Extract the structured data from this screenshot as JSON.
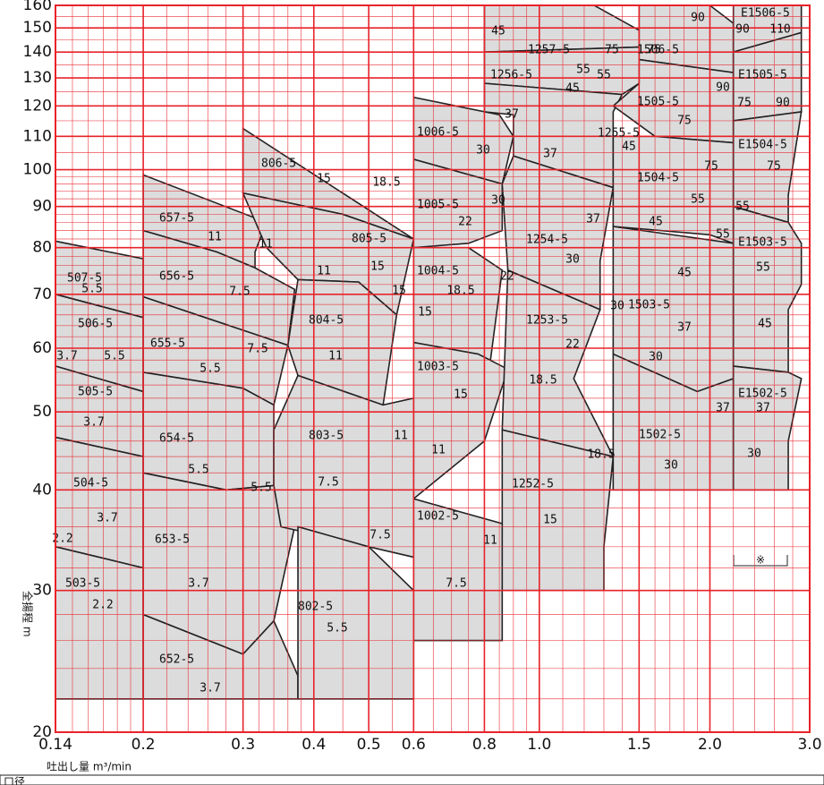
{
  "chart_data": {
    "type": "selection",
    "x_label": "吐出し量 m³/min",
    "y_label": "全揚程 m",
    "note": "※",
    "footer": "口径",
    "log_x": true,
    "log_y": true,
    "grid": true,
    "grid_color": "#e8232a",
    "fill_color": "#dcdcdc",
    "xlim": [
      0.14,
      3.0
    ],
    "ylim": [
      20,
      160
    ],
    "xticks": [
      0.14,
      0.2,
      0.3,
      0.4,
      0.5,
      0.6,
      0.8,
      {
        "value": 1,
        "label": "1.0"
      },
      1.5,
      {
        "value": 2,
        "label": "2.0"
      },
      {
        "value": 3,
        "label": "3.0"
      }
    ],
    "yticks": [
      20,
      30,
      40,
      50,
      60,
      70,
      80,
      90,
      100,
      110,
      120,
      130,
      140,
      150,
      160
    ],
    "minor_xticks": [
      0.15,
      0.16,
      0.17,
      0.18,
      0.19,
      0.22,
      0.24,
      0.26,
      0.28,
      0.32,
      0.34,
      0.36,
      0.38,
      0.45,
      0.55,
      0.65,
      0.7,
      0.75,
      0.85,
      0.9,
      0.95,
      1.1,
      1.2,
      1.3,
      1.4,
      1.6,
      1.7,
      1.8,
      1.9,
      2.2,
      2.4,
      2.6,
      2.8
    ],
    "minor_yticks": [
      22,
      24,
      26,
      28,
      32,
      34,
      36,
      38,
      42,
      44,
      46,
      48,
      52,
      54,
      56,
      58,
      62,
      64,
      66,
      68,
      72,
      74,
      76,
      78,
      82,
      84,
      86,
      88,
      92,
      94,
      96,
      98,
      105,
      115,
      125,
      135,
      145,
      155
    ],
    "regions": [
      {
        "name": "507-5",
        "kw": [
          "5.5"
        ],
        "x": [
          0.14,
          0.14,
          0.2,
          0.2
        ],
        "y": [
          70,
          81.5,
          77.5,
          65.5
        ]
      },
      {
        "name": "506-5",
        "kw": [
          "3.7",
          "5.5"
        ],
        "x": [
          0.14,
          0.14,
          0.2,
          0.2
        ],
        "y": [
          57,
          70,
          65.5,
          53
        ]
      },
      {
        "name": "505-5",
        "kw": [
          "3.7"
        ],
        "x": [
          0.14,
          0.14,
          0.2,
          0.2
        ],
        "y": [
          46.5,
          57,
          53,
          44
        ]
      },
      {
        "name": "504-5",
        "kw": [
          "3.7",
          "2.2"
        ],
        "x": [
          0.14,
          0.14,
          0.2,
          0.2
        ],
        "y": [
          34,
          46.5,
          44,
          32
        ]
      },
      {
        "name": "503-5",
        "kw": [
          "2.2"
        ],
        "x": [
          0.14,
          0.14,
          0.2,
          0.2
        ],
        "y": [
          22,
          34,
          32,
          22
        ]
      },
      {
        "name": "657-5",
        "kw": [
          "11",
          "11"
        ],
        "x": [
          0.2,
          0.2,
          0.33,
          0.315,
          0.315,
          0.27
        ],
        "y": [
          84,
          98.5,
          86,
          79,
          75.5,
          79
        ]
      },
      {
        "name": "656-5",
        "kw": [
          "7.5"
        ],
        "x": [
          0.2,
          0.2,
          0.27,
          0.315,
          0.37,
          0.36
        ],
        "y": [
          69.5,
          84,
          79,
          75.5,
          71,
          60.5
        ]
      },
      {
        "name": "655-5",
        "kw": [
          "5.5",
          "7.5"
        ],
        "x": [
          0.2,
          0.2,
          0.36,
          0.34,
          0.3
        ],
        "y": [
          56,
          69.5,
          60.5,
          51,
          53.5
        ]
      },
      {
        "name": "654-5",
        "kw": [
          "5.5",
          "5.5"
        ],
        "x": [
          0.2,
          0.2,
          0.3,
          0.34,
          0.34,
          0.34,
          0.28
        ],
        "y": [
          42,
          56,
          53.5,
          51,
          47.5,
          40.5,
          40
        ]
      },
      {
        "name": "653-5",
        "kw": [
          "3.7"
        ],
        "x": [
          0.2,
          0.2,
          0.28,
          0.34,
          0.37,
          0.34,
          0.3
        ],
        "y": [
          28,
          42,
          40,
          40.5,
          36,
          27.5,
          25
        ]
      },
      {
        "name": "652-5",
        "kw": [
          "3.7"
        ],
        "x": [
          0.2,
          0.2,
          0.3,
          0.34,
          0.375,
          0.375
        ],
        "y": [
          22,
          28,
          25,
          27.5,
          23.5,
          22
        ]
      },
      {
        "name": "806-5",
        "kw": [
          "15",
          "18.5"
        ],
        "x": [
          0.3,
          0.3,
          0.6,
          0.45
        ],
        "y": [
          93.5,
          112.5,
          82,
          88
        ]
      },
      {
        "name": "805-5",
        "kw": [
          "11",
          "15",
          "15"
        ],
        "x": [
          0.33,
          0.3,
          0.45,
          0.6,
          0.56,
          0.48,
          0.375
        ],
        "y": [
          80,
          93.5,
          88,
          82,
          66,
          72.5,
          73
        ]
      },
      {
        "name": "804-5",
        "kw": [
          "11"
        ],
        "x": [
          0.375,
          0.36,
          0.375,
          0.48,
          0.56,
          0.53
        ],
        "y": [
          55.5,
          60.5,
          73,
          72.5,
          66,
          51
        ]
      },
      {
        "name": "803-5",
        "kw": [
          "7.5",
          "11"
        ],
        "x": [
          0.35,
          0.34,
          0.34,
          0.375,
          0.53,
          0.6,
          0.6,
          0.5
        ],
        "y": [
          36,
          40.5,
          47.5,
          55.5,
          51,
          52,
          33,
          34
        ]
      },
      {
        "name": "802-5",
        "kw": [
          "5.5",
          "7.5"
        ],
        "x": [
          0.375,
          0.375,
          0.5,
          0.6,
          0.6
        ],
        "y": [
          22,
          36,
          34,
          30,
          22
        ]
      },
      {
        "name": "1006-5",
        "kw": [
          "30",
          "37"
        ],
        "x": [
          0.6,
          0.6,
          0.85,
          0.9,
          0.86
        ],
        "y": [
          103,
          123,
          117,
          110,
          96
        ]
      },
      {
        "name": "1005-5",
        "kw": [
          "22",
          "30"
        ],
        "x": [
          0.6,
          0.6,
          0.86,
          0.86,
          0.75
        ],
        "y": [
          80,
          103,
          96,
          84,
          81
        ]
      },
      {
        "name": "1004-5",
        "kw": [
          "18.5",
          "22",
          "15"
        ],
        "x": [
          0.6,
          0.6,
          0.75,
          0.86,
          0.82
        ],
        "y": [
          61,
          80,
          80,
          75,
          58
        ]
      },
      {
        "name": "1003-5",
        "kw": [
          "15",
          "11"
        ],
        "x": [
          0.6,
          0.6,
          0.78,
          0.88,
          0.8
        ],
        "y": [
          39,
          61,
          59,
          56.5,
          46
        ]
      },
      {
        "name": "1002-5",
        "kw": [
          "11",
          "7.5"
        ],
        "x": [
          0.6,
          0.6,
          0.9,
          0.86,
          0.86
        ],
        "y": [
          26,
          39,
          36,
          30,
          26
        ]
      },
      {
        "name": "1257-5",
        "kw": [
          "55",
          "75",
          "45"
        ],
        "x": [
          0.8,
          0.8,
          1.25,
          1.5,
          1.5
        ],
        "y": [
          140,
          160,
          160,
          149,
          142
        ]
      },
      {
        "name": "1256-5",
        "kw": [
          "45",
          "55"
        ],
        "x": [
          0.8,
          0.8,
          1.5,
          1.5,
          1.4
        ],
        "y": [
          128,
          140,
          142,
          128,
          124
        ]
      },
      {
        "name": "1255-5",
        "kw": [
          "37",
          "45"
        ],
        "x": [
          0.9,
          0.9,
          0.8,
          0.8,
          1.4,
          1.35,
          1.35
        ],
        "y": [
          104,
          117,
          118,
          128,
          124,
          118,
          95
        ]
      },
      {
        "name": "1254-5",
        "kw": [
          "37",
          "30"
        ],
        "x": [
          0.88,
          0.86,
          0.9,
          1.35,
          1.28,
          1.28
        ],
        "y": [
          75,
          96,
          104,
          95,
          77,
          67
        ]
      },
      {
        "name": "1253-5",
        "kw": [
          "22",
          "30",
          "18.5"
        ],
        "x": [
          0.86,
          0.88,
          1.28,
          1.15,
          1.35
        ],
        "y": [
          47.5,
          75,
          67,
          55,
          44
        ]
      },
      {
        "name": "1252-5",
        "kw": [
          "15",
          "18.5"
        ],
        "x": [
          0.86,
          0.86,
          1.35,
          1.3,
          1.3
        ],
        "y": [
          30,
          47.5,
          44,
          34,
          30
        ]
      },
      {
        "name": "1506-5",
        "kw": [
          "75",
          "90",
          "90"
        ],
        "x": [
          1.5,
          1.5,
          2.0,
          2.2,
          2.2
        ],
        "y": [
          137,
          160,
          160,
          152,
          132
        ]
      },
      {
        "name": "1505-5",
        "kw": [
          "75"
        ],
        "x": [
          1.35,
          1.5,
          1.5,
          2.2,
          2.2,
          1.6
        ],
        "y": [
          120,
          128,
          137,
          132,
          108,
          110
        ]
      },
      {
        "name": "1504-5",
        "kw": [
          "55",
          "75",
          "45",
          "55"
        ],
        "x": [
          1.35,
          1.35,
          1.6,
          2.2,
          2.2,
          2.0
        ],
        "y": [
          85,
          110,
          110,
          108,
          81,
          83
        ]
      },
      {
        "name": "1503-5",
        "kw": [
          "45",
          "37",
          "30"
        ],
        "x": [
          1.35,
          1.35,
          2.2,
          2.2,
          1.9
        ],
        "y": [
          59,
          85,
          81,
          55,
          53
        ]
      },
      {
        "name": "1502-5",
        "kw": [
          "30",
          "37"
        ],
        "x": [
          1.35,
          1.35,
          1.9,
          2.2,
          2.2
        ],
        "y": [
          40,
          59,
          53,
          55,
          40
        ]
      },
      {
        "name": "E1506-5",
        "kw": [
          "90",
          "110"
        ],
        "x": [
          2.2,
          2.2,
          2.9,
          2.9
        ],
        "y": [
          140,
          160,
          160,
          148
        ]
      },
      {
        "name": "E1505-5",
        "kw": [
          "75",
          "90"
        ],
        "x": [
          2.2,
          2.2,
          2.9,
          2.9
        ],
        "y": [
          115,
          140,
          148,
          118
        ]
      },
      {
        "name": "E1504-5",
        "kw": [
          "75",
          "55"
        ],
        "x": [
          2.2,
          2.2,
          2.9,
          2.75,
          2.75
        ],
        "y": [
          90,
          115,
          118,
          93,
          86
        ]
      },
      {
        "name": "E1503-5",
        "kw": [
          "55",
          "45"
        ],
        "x": [
          2.2,
          2.2,
          2.75,
          2.9,
          2.9,
          2.75,
          2.75
        ],
        "y": [
          57,
          90,
          86,
          81,
          72,
          67,
          56
        ]
      },
      {
        "name": "E1502-5",
        "kw": [
          "37",
          "30"
        ],
        "x": [
          2.2,
          2.2,
          2.75,
          2.9,
          2.75,
          2.75
        ],
        "y": [
          40,
          57,
          56,
          55,
          46,
          40
        ]
      }
    ]
  }
}
